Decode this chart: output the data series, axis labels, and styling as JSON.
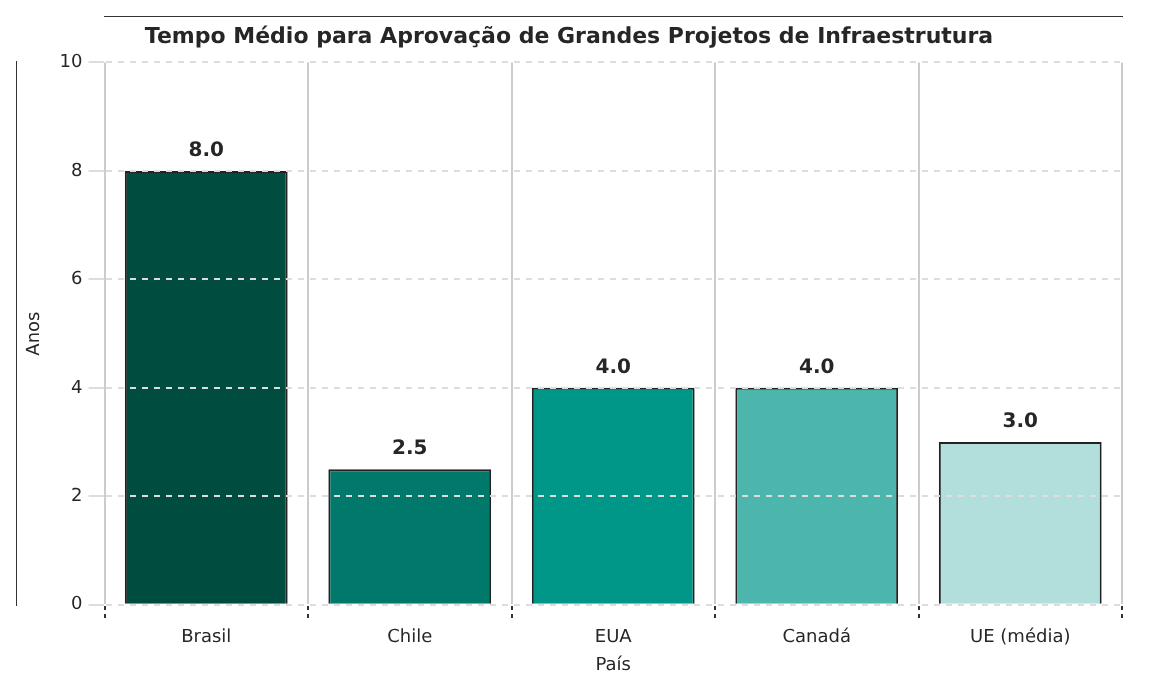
{
  "chart_data": {
    "type": "bar",
    "title": "Tempo Médio para Aprovação de Grandes Projetos de Infraestrutura",
    "xlabel": "País",
    "ylabel": "Anos",
    "categories": [
      "Brasil",
      "Chile",
      "EUA",
      "Canadá",
      "UE (média)"
    ],
    "values": [
      8.0,
      2.5,
      4.0,
      4.0,
      3.0
    ],
    "colors": [
      "#004c3f",
      "#00796b",
      "#009688",
      "#4db6ac",
      "#b2dfdb"
    ],
    "value_labels": [
      "8.0",
      "2.5",
      "4.0",
      "4.0",
      "3.0"
    ],
    "ylim": [
      0,
      10
    ],
    "yticks": [
      0,
      2,
      4,
      6,
      8,
      10
    ],
    "grid": true,
    "legend": false
  }
}
